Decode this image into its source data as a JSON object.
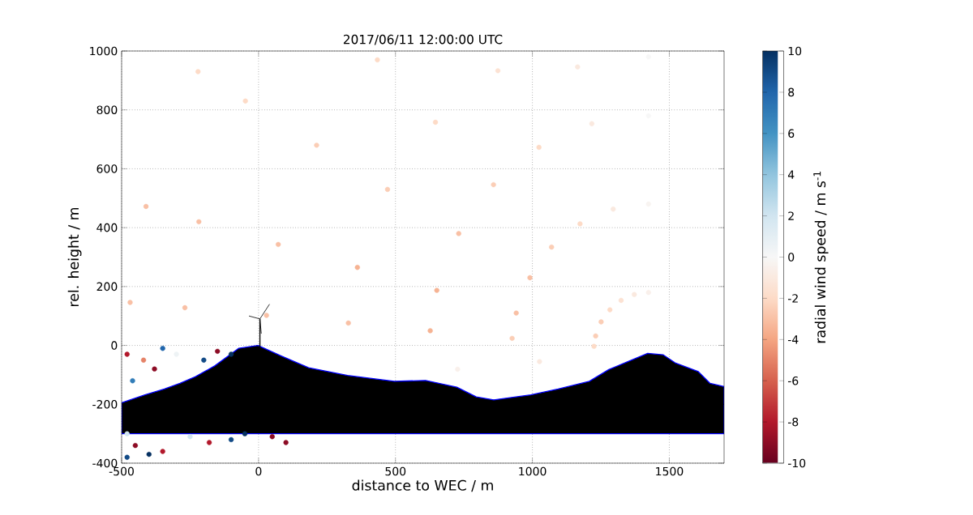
{
  "chart_data": {
    "type": "scatter",
    "title": "2017/06/11 12:00:00 UTC",
    "xlabel": "distance to WEC / m",
    "ylabel": "rel. height / m",
    "clabel": "radial wind speed / m s$^{-1}$",
    "xlim": [
      -500,
      1700
    ],
    "xticks": [
      -500,
      0,
      500,
      1000,
      1500
    ],
    "ylim": [
      -400,
      1000
    ],
    "yticks": [
      -400,
      -200,
      0,
      200,
      400,
      600,
      800,
      1000
    ],
    "clim": [
      -10,
      10
    ],
    "cticks": [
      -10,
      -8,
      -6,
      -4,
      -2,
      0,
      2,
      4,
      6,
      8,
      10
    ],
    "grid": true,
    "series": [
      {
        "marker": "circle",
        "colors": [
          "#fddbc7",
          "#fbceb6",
          "#f6b393",
          "#f9c0a5",
          "#f9c0a5",
          "#f9c0a5",
          "#f9c0a5",
          "#fbceb6",
          "#f9c0a5",
          "#f6b393",
          "#f6b393",
          "#f9c0a5",
          "#f9c0a5",
          "#f9c0a5",
          "#fbceb6",
          "#f9c0a5",
          "#f9c0a5",
          "#fbceb6",
          "#fbceb6",
          "#fddbc7",
          "#fddbc7",
          "#fddbc7",
          "#fbceb6",
          "#fbceb6",
          "#fddbc7",
          "#fddbc7",
          "#fce2d3",
          "#fddbc7",
          "#fddbc7",
          "#fce2d3",
          "#fae9df",
          "#fae9df",
          "#fae9df",
          "#fae9df",
          "#f9f0eb",
          "#f8f4f1",
          "#f7f7f7",
          "#f7f7f7",
          "#fae9df",
          "#f9f0eb",
          "#b2182b",
          "#327db8",
          "#e58368",
          "#8d0c25",
          "#2166ac",
          "#eef3f5",
          "#134b87",
          "#8d0c25",
          "#053061",
          "#134b87",
          "#8d0c25",
          "#053061",
          "#b2182b",
          "#d1e5f0",
          "#b2182b",
          "#134b87",
          "#053061",
          "#8d0c25",
          "#8d0c25",
          "#d1e5f0"
        ],
        "x": [
          1225,
          926,
          627,
          328,
          29,
          -269,
          -469,
          1231,
          941,
          651,
          361,
          72,
          -218,
          -411,
          1251,
          991,
          731,
          471,
          212,
          -48,
          -221,
          1283,
          1070,
          858,
          646,
          434,
          1324,
          1174,
          1024,
          874,
          1372,
          1295,
          1217,
          1165,
          1424,
          1424,
          1424,
          1424,
          1026,
          727,
          -480,
          -460,
          -420,
          -380,
          -350,
          -300,
          -200,
          -150,
          -100,
          -480,
          -450,
          -400,
          -350,
          -250,
          -180,
          -100,
          -50,
          50,
          100,
          -480
        ],
        "values": [
          -3,
          24,
          50,
          76,
          102,
          128,
          146,
          32,
          110,
          187,
          265,
          343,
          420,
          472,
          80,
          230,
          380,
          530,
          680,
          830,
          930,
          121,
          334,
          546,
          758,
          970,
          153,
          413,
          673,
          933,
          173,
          463,
          753,
          946,
          180,
          480,
          780,
          980,
          -55,
          -81,
          -30,
          -120,
          -50,
          -80,
          -10,
          -30,
          -50,
          -20,
          -30,
          -380,
          -340,
          -370,
          -360,
          -310,
          -330,
          -320,
          -300,
          -310,
          -330,
          -300
        ],
        "cvalues": [
          -2,
          -2.5,
          -3.5,
          -3,
          -3,
          -3,
          -3,
          -2.5,
          -3,
          -3.5,
          -3.5,
          -3,
          -3,
          -3,
          -2.5,
          -3,
          -3,
          -2.5,
          -2.5,
          -2,
          -2,
          -2,
          -2.5,
          -2.5,
          -2,
          -2,
          -1.5,
          -2,
          -2,
          -1.5,
          -1,
          -1,
          -1,
          -1,
          -0.5,
          -0.3,
          0,
          0,
          -1,
          -0.5,
          -8,
          7,
          -5,
          -9,
          8,
          0.5,
          9,
          -9,
          10,
          9,
          -9,
          10,
          -8,
          2,
          -8,
          9,
          10,
          -9,
          -9,
          2
        ]
      },
      {
        "type": "area",
        "color": "#000000",
        "x": [
          -500,
          -500,
          -415,
          -344,
          -287,
          -230,
          -159,
          -73,
          -2,
          83,
          183,
          325,
          496,
          610,
          724,
          795,
          859,
          994,
          1094,
          1208,
          1279,
          1421,
          1478,
          1521,
          1606,
          1649,
          1700,
          1700
        ],
        "values": [
          -300,
          -195,
          -168,
          -148,
          -129,
          -106,
          -69,
          -10,
          0,
          -36,
          -76,
          -102,
          -122,
          -119,
          -142,
          -175,
          -185,
          -168,
          -148,
          -122,
          -82,
          -27,
          -32,
          -59,
          -89,
          -129,
          -140,
          -300
        ]
      }
    ]
  }
}
